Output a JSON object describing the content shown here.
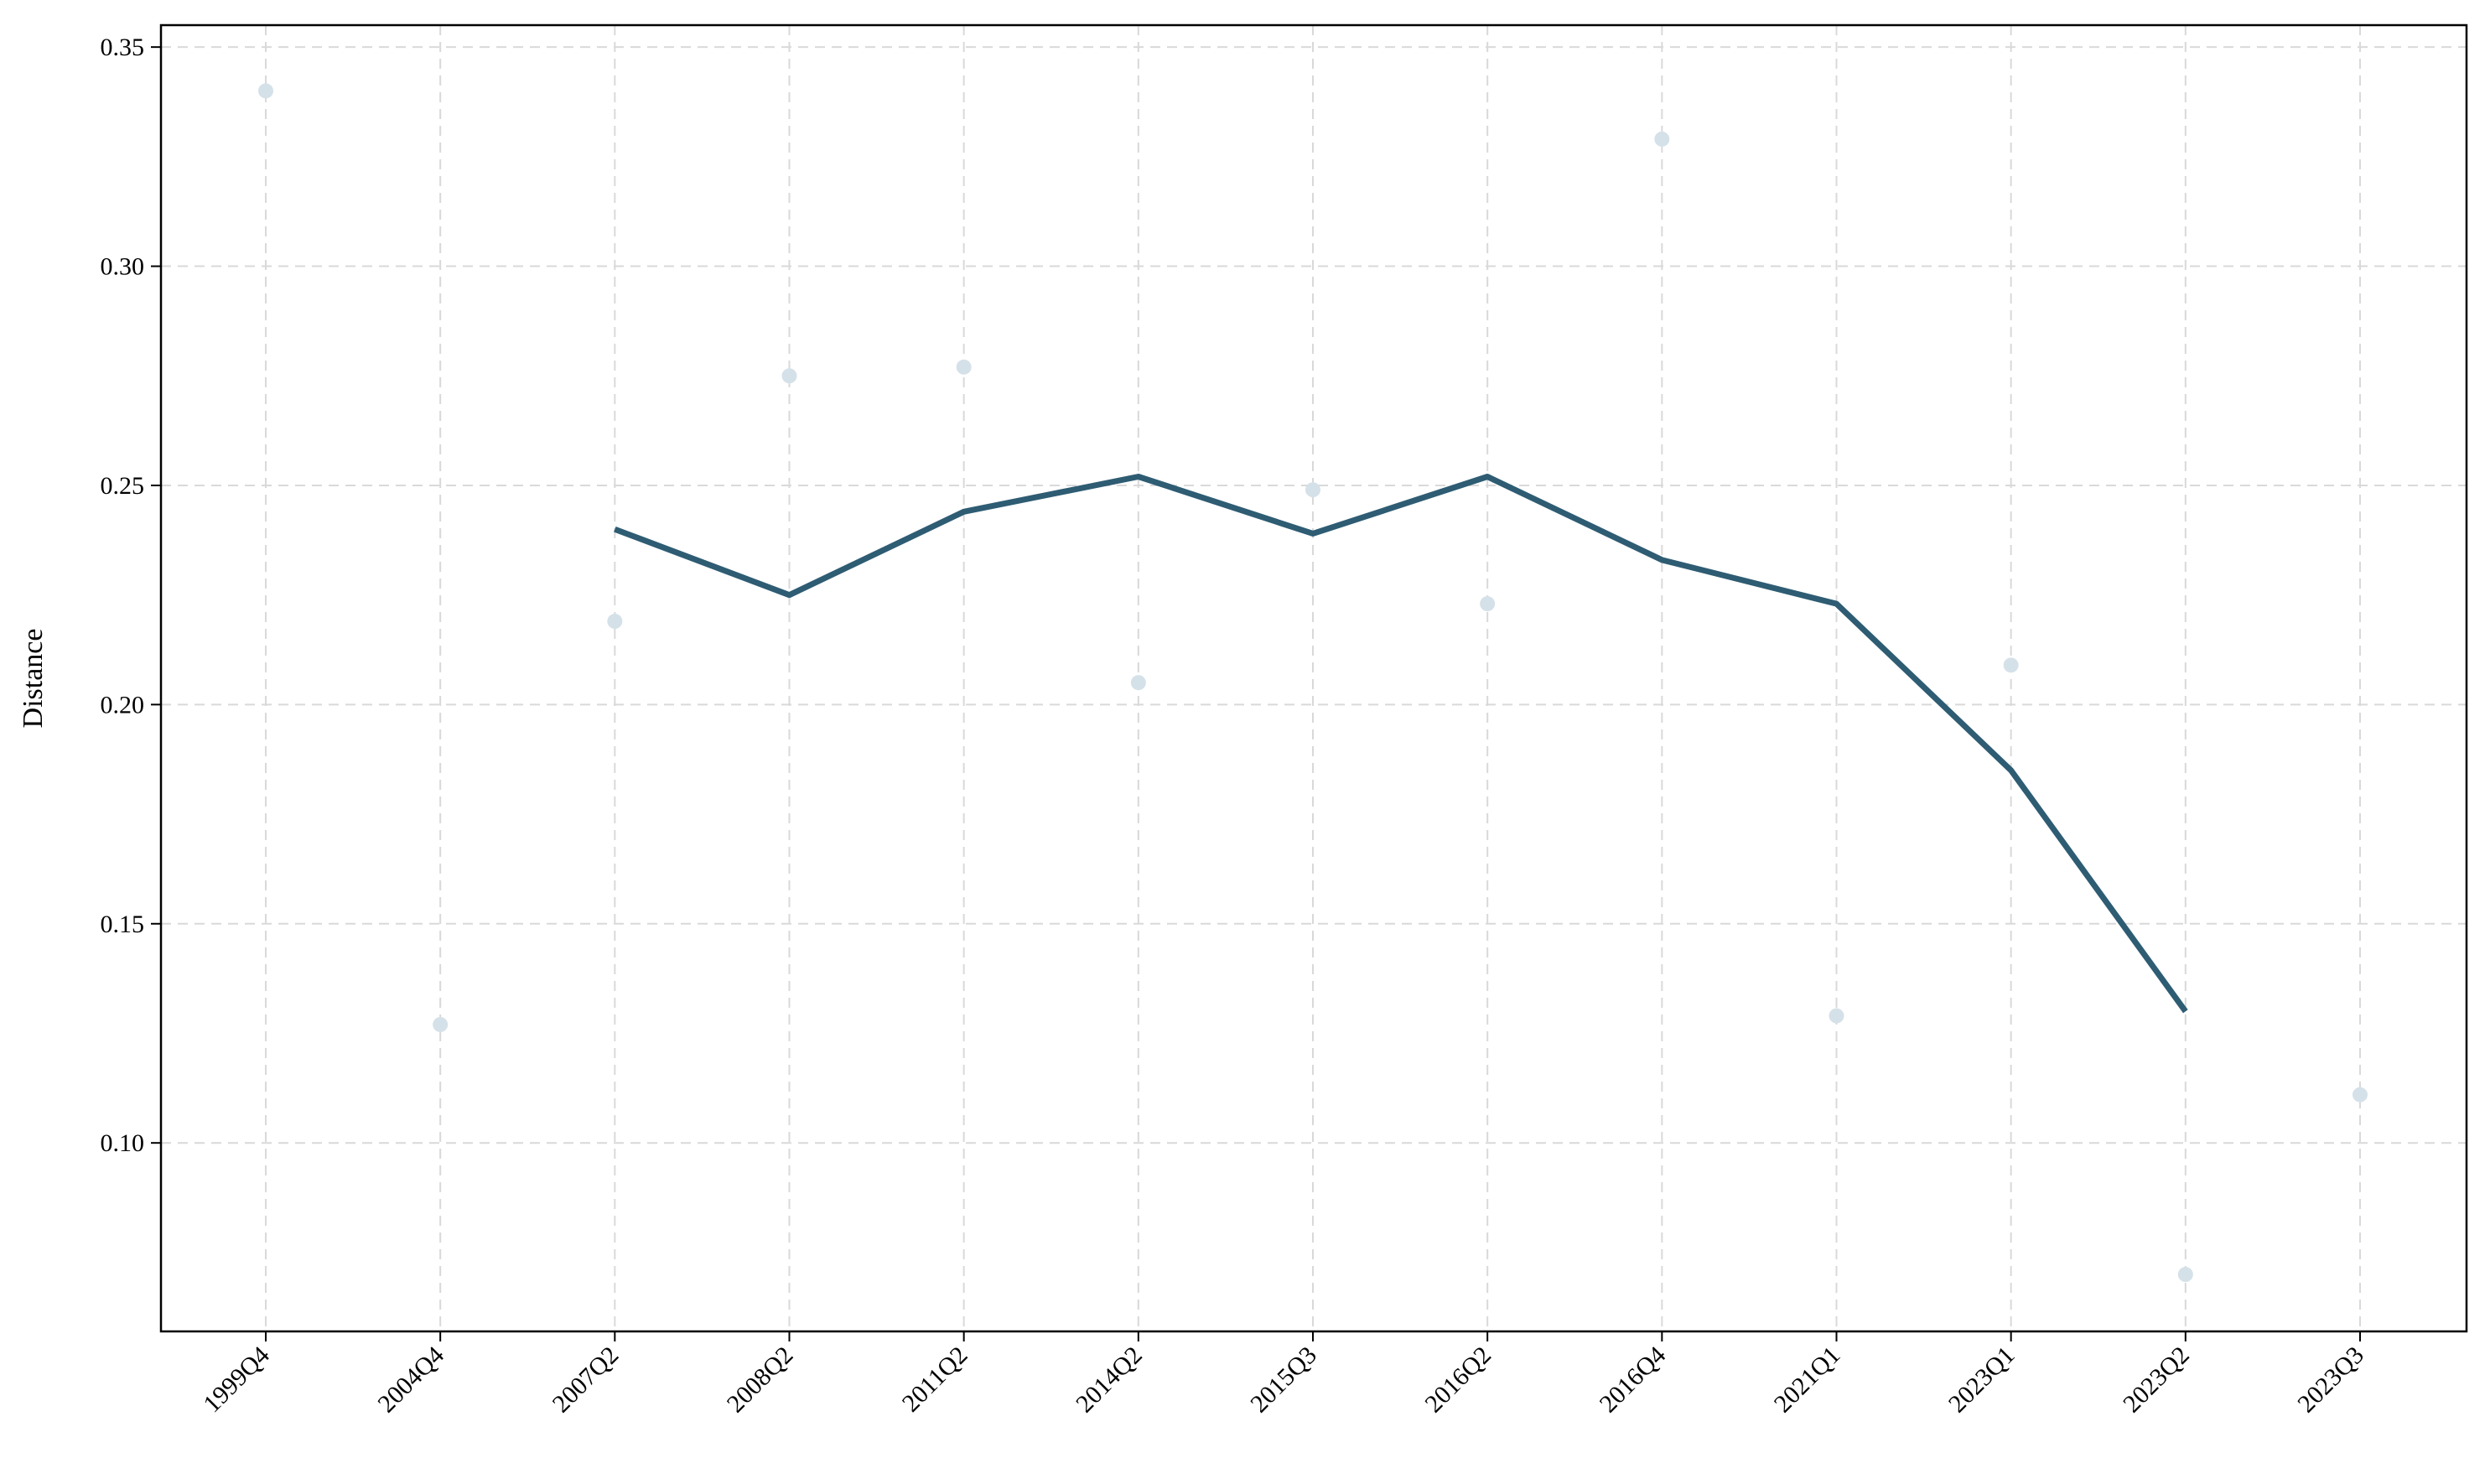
{
  "chart_data": {
    "type": "line",
    "title": "",
    "xlabel": "",
    "ylabel": "Distance",
    "categories": [
      "1999Q4",
      "2004Q4",
      "2007Q2",
      "2008Q2",
      "2011Q2",
      "2014Q2",
      "2015Q3",
      "2016Q2",
      "2016Q4",
      "2021Q1",
      "2023Q1",
      "2023Q2",
      "2023Q3"
    ],
    "yticks": [
      0.1,
      0.15,
      0.2,
      0.25,
      0.3,
      0.35
    ],
    "ylim": [
      0.057,
      0.355
    ],
    "grid": true,
    "series": [
      {
        "kind": "scatter",
        "values": [
          0.34,
          0.127,
          0.219,
          0.275,
          0.277,
          0.205,
          0.249,
          0.223,
          0.329,
          0.129,
          0.209,
          0.07,
          0.111
        ],
        "color": "#d5e1e8"
      },
      {
        "kind": "line",
        "values": [
          null,
          null,
          0.24,
          0.225,
          0.244,
          0.252,
          0.239,
          0.252,
          0.233,
          0.223,
          0.185,
          0.13,
          null
        ],
        "color": "#2e5c73"
      }
    ]
  }
}
